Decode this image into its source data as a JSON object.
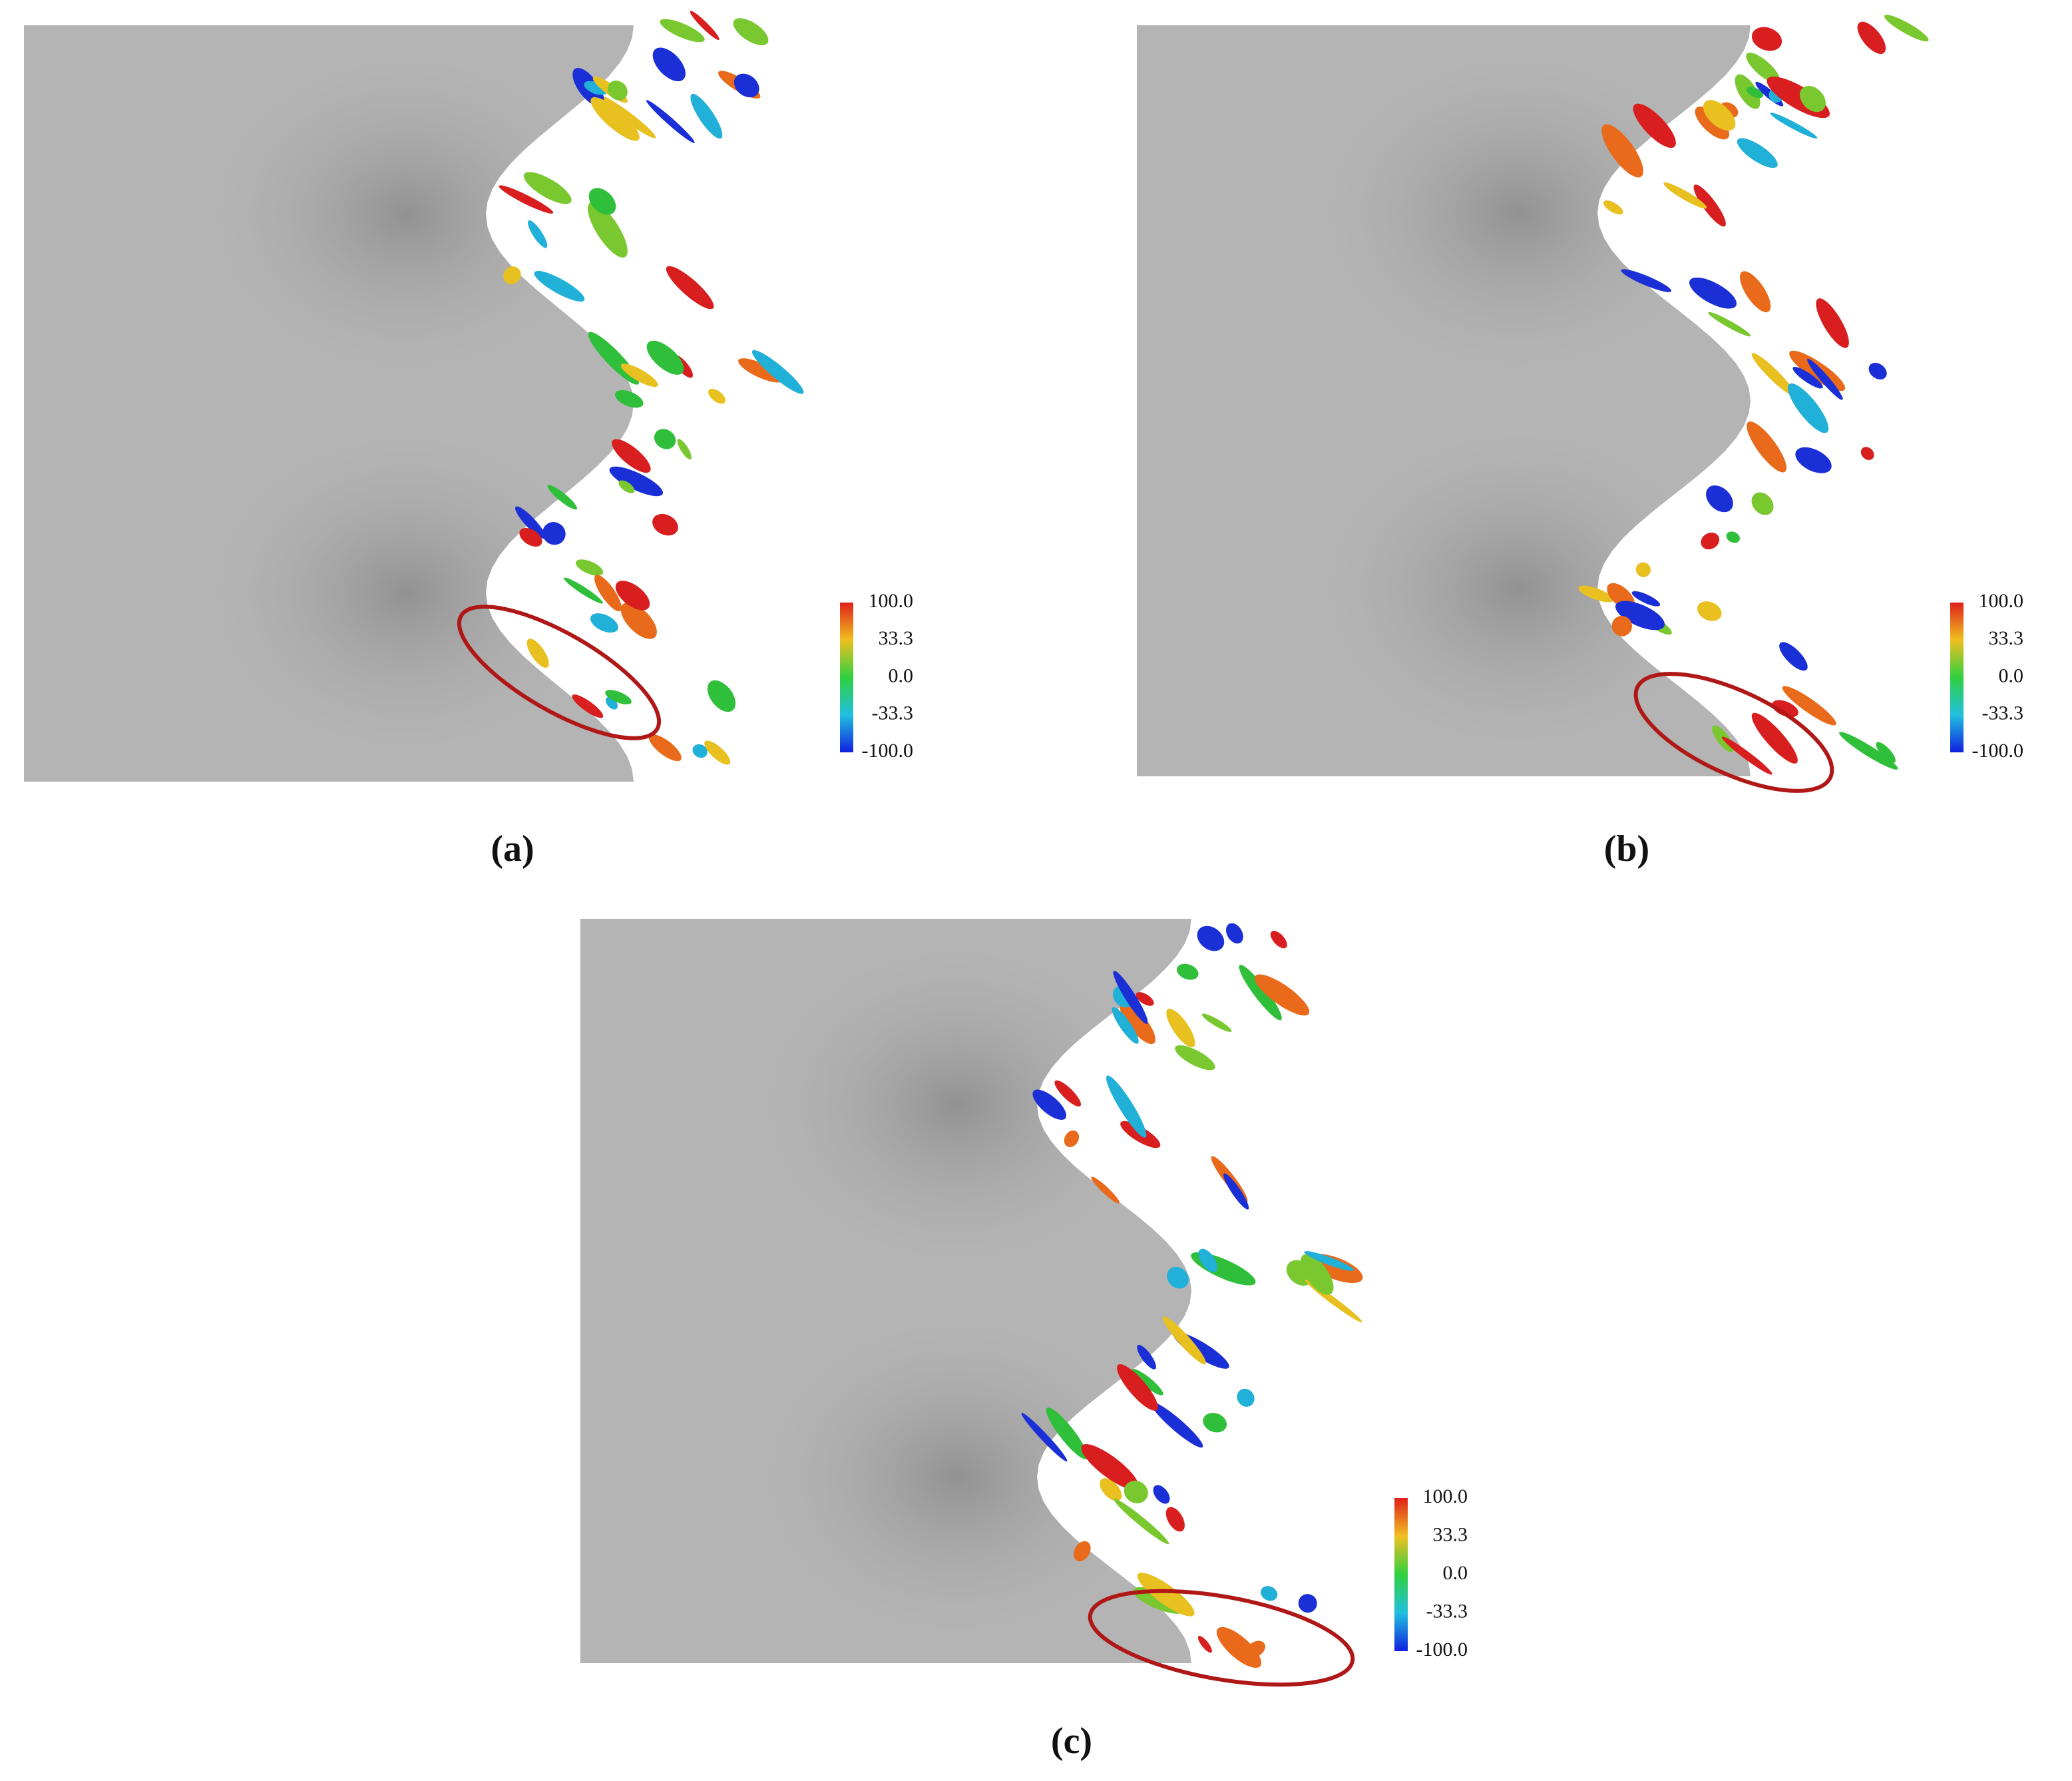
{
  "panels": [
    {
      "caption": "(a)",
      "colorbar": [
        "100.0",
        "33.3",
        "0.0",
        "-33.3",
        "-100.0"
      ]
    },
    {
      "caption": "(b)",
      "colorbar": [
        "100.0",
        "33.3",
        "0.0",
        "-33.3",
        "-100.0"
      ]
    },
    {
      "caption": "(c)",
      "colorbar": [
        "100.0",
        "33.3",
        "0.0",
        "-33.3",
        "-100.0"
      ]
    }
  ]
}
